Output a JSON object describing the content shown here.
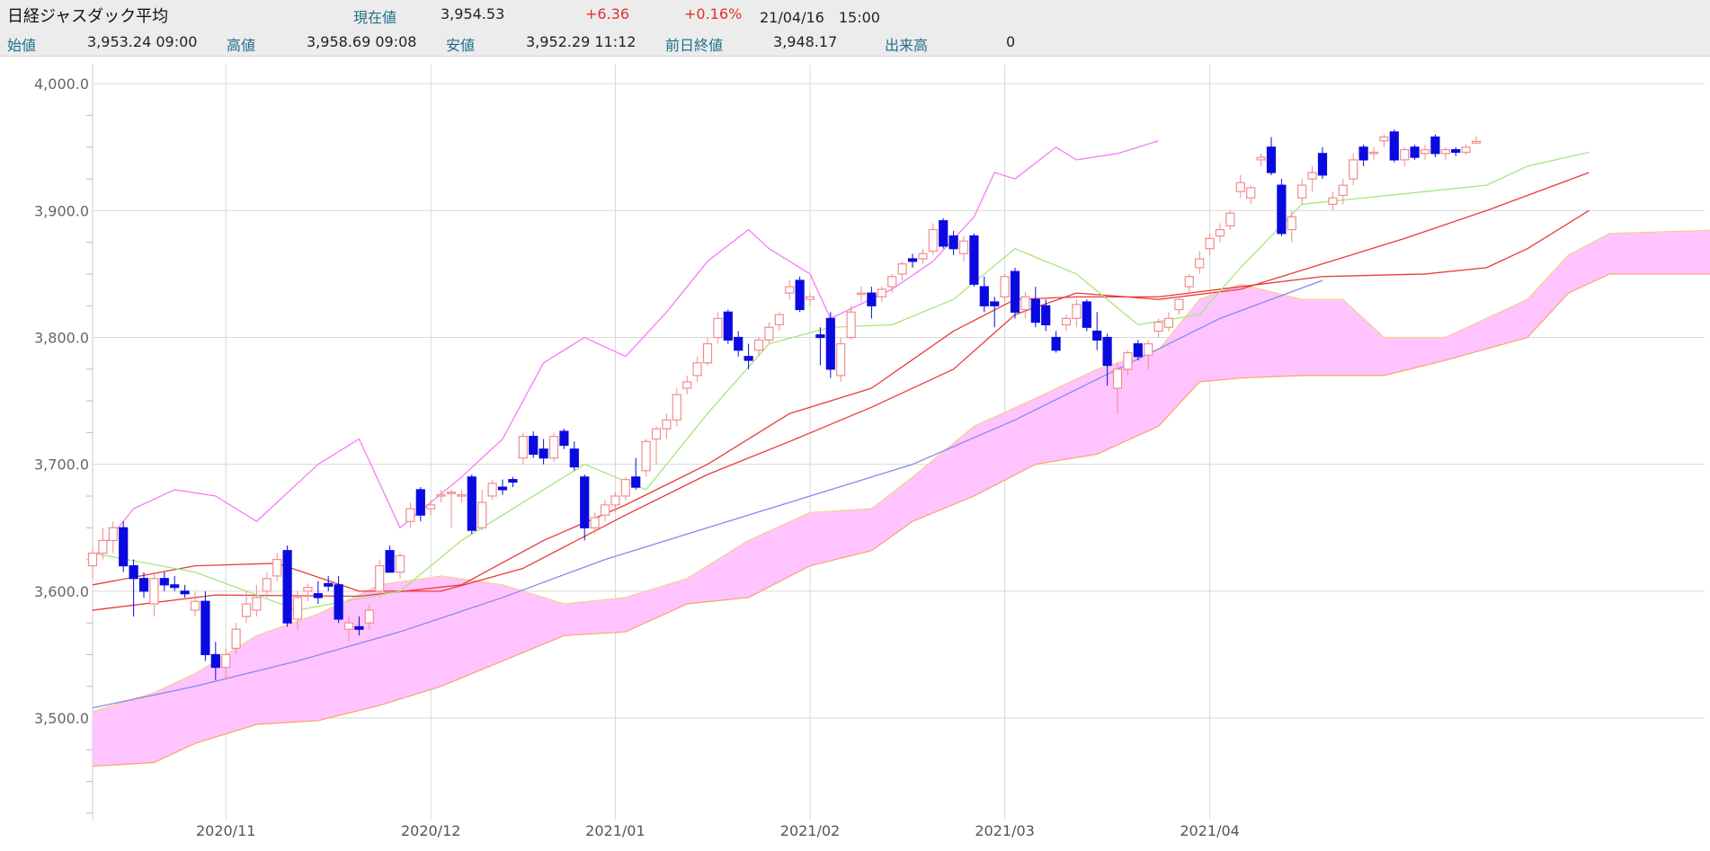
{
  "header": {
    "title": "日経ジャスダック平均",
    "current_label": "現在値",
    "current_value": "3,954.53",
    "change": "+6.36",
    "change_pct": "+0.16%",
    "datetime": "21/04/16　15:00",
    "open_label": "始値",
    "open_value": "3,953.24 09:00",
    "high_label": "高値",
    "high_value": "3,958.69 09:08",
    "low_label": "安値",
    "low_value": "3,952.29 11:12",
    "prev_close_label": "前日終値",
    "prev_close_value": "3,948.17",
    "volume_label": "出来高",
    "volume_value": "0"
  },
  "colors": {
    "cloud": "#ffc4ff",
    "cloud_edge_top": "#f4d08a",
    "cloud_edge_bottom": "#f7a46a",
    "candle_up": "#f28c8c",
    "candle_down": "#0a0ae0",
    "tenkan": "#a6e67a",
    "kijun_short": "#e83a3a",
    "kijun_long": "#e83a3a",
    "chikou": "#f37df3",
    "ma_long": "#8888ee",
    "grid": "#d9d9d9"
  },
  "chart_data": {
    "type": "candlestick",
    "ylim": [
      3420,
      4015
    ],
    "yticks": [
      3500,
      3600,
      3700,
      3800,
      3900,
      4000
    ],
    "ytick_labels": [
      "3,500.0",
      "3,600.0",
      "3,700.0",
      "3,800.0",
      "3,900.0",
      "4,000.0"
    ],
    "month_labels": [
      "2020/11",
      "2020/12",
      "2021/01",
      "2021/02",
      "2021/03",
      "2021/04"
    ],
    "month_index": [
      13,
      33,
      51,
      70,
      89,
      109
    ],
    "x_count": 151,
    "candles": [
      [
        3620,
        3635,
        3610,
        3630
      ],
      [
        3630,
        3650,
        3625,
        3640
      ],
      [
        3640,
        3655,
        3630,
        3650
      ],
      [
        3650,
        3655,
        3615,
        3620
      ],
      [
        3620,
        3625,
        3580,
        3610
      ],
      [
        3610,
        3615,
        3595,
        3600
      ],
      [
        3590,
        3615,
        3580,
        3610
      ],
      [
        3610,
        3615,
        3600,
        3605
      ],
      [
        3605,
        3612,
        3600,
        3603
      ],
      [
        3600,
        3605,
        3595,
        3598
      ],
      [
        3585,
        3600,
        3580,
        3592
      ],
      [
        3592,
        3600,
        3545,
        3550
      ],
      [
        3550,
        3560,
        3530,
        3540
      ],
      [
        3540,
        3555,
        3530,
        3550
      ],
      [
        3555,
        3575,
        3550,
        3570
      ],
      [
        3580,
        3600,
        3575,
        3590
      ],
      [
        3585,
        3605,
        3580,
        3595
      ],
      [
        3600,
        3615,
        3595,
        3610
      ],
      [
        3612,
        3630,
        3608,
        3625
      ],
      [
        3632,
        3636,
        3572,
        3575
      ],
      [
        3578,
        3600,
        3570,
        3595
      ],
      [
        3600,
        3606,
        3592,
        3603
      ],
      [
        3598,
        3608,
        3590,
        3595
      ],
      [
        3606,
        3612,
        3600,
        3604
      ],
      [
        3605,
        3612,
        3575,
        3578
      ],
      [
        3570,
        3580,
        3560,
        3575
      ],
      [
        3572,
        3580,
        3565,
        3570
      ],
      [
        3575,
        3590,
        3570,
        3585
      ],
      [
        3600,
        3625,
        3595,
        3620
      ],
      [
        3632,
        3636,
        3615,
        3615
      ],
      [
        3615,
        3630,
        3610,
        3628
      ],
      [
        3655,
        3670,
        3650,
        3665
      ],
      [
        3680,
        3682,
        3655,
        3660
      ],
      [
        3665,
        3672,
        3660,
        3668
      ],
      [
        3676,
        3680,
        3670,
        3676
      ],
      [
        3678,
        3680,
        3650,
        3678
      ],
      [
        3676,
        3680,
        3670,
        3676
      ],
      [
        3690,
        3692,
        3645,
        3648
      ],
      [
        3650,
        3680,
        3648,
        3670
      ],
      [
        3675,
        3688,
        3672,
        3685
      ],
      [
        3682,
        3688,
        3676,
        3680
      ],
      [
        3688,
        3690,
        3682,
        3686
      ],
      [
        3705,
        3725,
        3700,
        3722
      ],
      [
        3722,
        3726,
        3705,
        3708
      ],
      [
        3712,
        3720,
        3700,
        3705
      ],
      [
        3705,
        3725,
        3702,
        3722
      ],
      [
        3726,
        3728,
        3712,
        3715
      ],
      [
        3712,
        3718,
        3695,
        3698
      ],
      [
        3690,
        3692,
        3640,
        3650
      ],
      [
        3650,
        3662,
        3645,
        3658
      ],
      [
        3660,
        3672,
        3655,
        3668
      ],
      [
        3668,
        3678,
        3662,
        3675
      ],
      [
        3675,
        3690,
        3672,
        3688
      ],
      [
        3690,
        3705,
        3680,
        3682
      ],
      [
        3695,
        3720,
        3690,
        3718
      ],
      [
        3720,
        3730,
        3700,
        3728
      ],
      [
        3728,
        3740,
        3720,
        3735
      ],
      [
        3735,
        3760,
        3730,
        3755
      ],
      [
        3760,
        3770,
        3755,
        3765
      ],
      [
        3770,
        3785,
        3765,
        3780
      ],
      [
        3780,
        3800,
        3778,
        3795
      ],
      [
        3800,
        3820,
        3795,
        3815
      ],
      [
        3820,
        3822,
        3795,
        3798
      ],
      [
        3800,
        3805,
        3785,
        3790
      ],
      [
        3785,
        3795,
        3775,
        3782
      ],
      [
        3790,
        3800,
        3785,
        3798
      ],
      [
        3798,
        3812,
        3795,
        3808
      ],
      [
        3810,
        3820,
        3805,
        3818
      ],
      [
        3835,
        3845,
        3830,
        3840
      ],
      [
        3845,
        3848,
        3820,
        3822
      ],
      [
        3830,
        3835,
        3825,
        3832
      ],
      [
        3802,
        3808,
        3778,
        3800
      ],
      [
        3815,
        3820,
        3768,
        3775
      ],
      [
        3770,
        3800,
        3765,
        3795
      ],
      [
        3800,
        3825,
        3798,
        3820
      ],
      [
        3835,
        3840,
        3828,
        3835
      ],
      [
        3835,
        3840,
        3815,
        3825
      ],
      [
        3832,
        3840,
        3828,
        3838
      ],
      [
        3840,
        3850,
        3835,
        3848
      ],
      [
        3850,
        3860,
        3845,
        3858
      ],
      [
        3862,
        3866,
        3855,
        3860
      ],
      [
        3862,
        3870,
        3858,
        3866
      ],
      [
        3868,
        3890,
        3865,
        3885
      ],
      [
        3892,
        3894,
        3870,
        3872
      ],
      [
        3880,
        3884,
        3865,
        3870
      ],
      [
        3866,
        3880,
        3860,
        3876
      ],
      [
        3880,
        3882,
        3840,
        3842
      ],
      [
        3840,
        3848,
        3820,
        3825
      ],
      [
        3828,
        3832,
        3808,
        3825
      ],
      [
        3832,
        3850,
        3828,
        3848
      ],
      [
        3852,
        3855,
        3815,
        3820
      ],
      [
        3822,
        3836,
        3815,
        3832
      ],
      [
        3830,
        3840,
        3808,
        3812
      ],
      [
        3825,
        3830,
        3805,
        3810
      ],
      [
        3800,
        3805,
        3788,
        3790
      ],
      [
        3810,
        3818,
        3805,
        3815
      ],
      [
        3815,
        3830,
        3808,
        3826
      ],
      [
        3828,
        3830,
        3805,
        3808
      ],
      [
        3805,
        3820,
        3790,
        3798
      ],
      [
        3800,
        3803,
        3762,
        3778
      ],
      [
        3760,
        3780,
        3740,
        3775
      ],
      [
        3775,
        3790,
        3770,
        3788
      ],
      [
        3795,
        3798,
        3782,
        3785
      ],
      [
        3786,
        3798,
        3775,
        3795
      ],
      [
        3805,
        3815,
        3800,
        3812
      ],
      [
        3808,
        3820,
        3805,
        3815
      ],
      [
        3822,
        3832,
        3818,
        3830
      ],
      [
        3840,
        3850,
        3835,
        3848
      ],
      [
        3855,
        3868,
        3850,
        3862
      ],
      [
        3870,
        3882,
        3865,
        3878
      ],
      [
        3880,
        3890,
        3875,
        3885
      ],
      [
        3888,
        3900,
        3885,
        3898
      ],
      [
        3915,
        3928,
        3910,
        3922
      ],
      [
        3910,
        3920,
        3905,
        3918
      ],
      [
        3940,
        3945,
        3935,
        3942
      ],
      [
        3950,
        3958,
        3928,
        3930
      ],
      [
        3920,
        3925,
        3880,
        3882
      ],
      [
        3885,
        3900,
        3875,
        3895
      ],
      [
        3910,
        3925,
        3905,
        3920
      ],
      [
        3925,
        3935,
        3915,
        3930
      ],
      [
        3945,
        3950,
        3925,
        3928
      ],
      [
        3905,
        3915,
        3900,
        3910
      ],
      [
        3912,
        3925,
        3905,
        3920
      ],
      [
        3925,
        3945,
        3920,
        3940
      ],
      [
        3950,
        3952,
        3935,
        3940
      ],
      [
        3945,
        3950,
        3940,
        3946
      ],
      [
        3955,
        3960,
        3950,
        3958
      ],
      [
        3962,
        3964,
        3938,
        3940
      ],
      [
        3940,
        3950,
        3935,
        3948
      ],
      [
        3950,
        3952,
        3940,
        3942
      ],
      [
        3945,
        3952,
        3940,
        3948
      ],
      [
        3958,
        3960,
        3942,
        3945
      ],
      [
        3945,
        3950,
        3940,
        3948
      ],
      [
        3948,
        3950,
        3943,
        3946
      ],
      [
        3946,
        3952,
        3944,
        3950
      ],
      [
        3953.24,
        3958.69,
        3952.29,
        3954.53
      ]
    ],
    "tenkan": [
      [
        0,
        3630
      ],
      [
        10,
        3615
      ],
      [
        20,
        3585
      ],
      [
        30,
        3600
      ],
      [
        36,
        3640
      ],
      [
        42,
        3670
      ],
      [
        48,
        3700
      ],
      [
        54,
        3680
      ],
      [
        60,
        3740
      ],
      [
        66,
        3795
      ],
      [
        72,
        3808
      ],
      [
        78,
        3810
      ],
      [
        84,
        3830
      ],
      [
        90,
        3870
      ],
      [
        96,
        3850
      ],
      [
        102,
        3810
      ],
      [
        108,
        3818
      ],
      [
        112,
        3855
      ],
      [
        118,
        3905
      ],
      [
        124,
        3910
      ],
      [
        130,
        3915
      ],
      [
        136,
        3920
      ],
      [
        140,
        3935
      ],
      [
        146,
        3946
      ]
    ],
    "kijun_short": [
      [
        0,
        3605
      ],
      [
        10,
        3620
      ],
      [
        18,
        3622
      ],
      [
        26,
        3600
      ],
      [
        34,
        3600
      ],
      [
        42,
        3618
      ],
      [
        52,
        3660
      ],
      [
        60,
        3692
      ],
      [
        68,
        3718
      ],
      [
        76,
        3745
      ],
      [
        84,
        3775
      ],
      [
        90,
        3818
      ],
      [
        96,
        3835
      ],
      [
        104,
        3830
      ],
      [
        112,
        3838
      ],
      [
        120,
        3858
      ],
      [
        128,
        3878
      ],
      [
        136,
        3900
      ],
      [
        146,
        3930
      ]
    ],
    "kijun_long": [
      [
        0,
        3585
      ],
      [
        12,
        3597
      ],
      [
        26,
        3596
      ],
      [
        36,
        3605
      ],
      [
        44,
        3640
      ],
      [
        52,
        3668
      ],
      [
        60,
        3700
      ],
      [
        68,
        3740
      ],
      [
        76,
        3760
      ],
      [
        84,
        3805
      ],
      [
        90,
        3830
      ],
      [
        96,
        3832
      ],
      [
        104,
        3832
      ],
      [
        112,
        3840
      ],
      [
        120,
        3848
      ],
      [
        130,
        3850
      ],
      [
        136,
        3855
      ],
      [
        140,
        3870
      ],
      [
        146,
        3900
      ]
    ],
    "chikou": [
      [
        0,
        3625
      ],
      [
        4,
        3665
      ],
      [
        8,
        3680
      ],
      [
        12,
        3675
      ],
      [
        16,
        3655
      ],
      [
        22,
        3700
      ],
      [
        26,
        3720
      ],
      [
        30,
        3650
      ],
      [
        36,
        3690
      ],
      [
        40,
        3720
      ],
      [
        44,
        3780
      ],
      [
        48,
        3800
      ],
      [
        52,
        3785
      ],
      [
        56,
        3820
      ],
      [
        60,
        3860
      ],
      [
        64,
        3885
      ],
      [
        66,
        3870
      ],
      [
        70,
        3850
      ],
      [
        72,
        3815
      ],
      [
        78,
        3838
      ],
      [
        82,
        3860
      ],
      [
        86,
        3895
      ],
      [
        88,
        3930
      ],
      [
        90,
        3925
      ],
      [
        94,
        3950
      ],
      [
        96,
        3940
      ],
      [
        100,
        3945
      ],
      [
        104,
        3955
      ]
    ],
    "ma_long": [
      [
        0,
        3508
      ],
      [
        10,
        3525
      ],
      [
        20,
        3545
      ],
      [
        30,
        3568
      ],
      [
        40,
        3595
      ],
      [
        50,
        3625
      ],
      [
        60,
        3650
      ],
      [
        70,
        3675
      ],
      [
        80,
        3700
      ],
      [
        90,
        3735
      ],
      [
        100,
        3775
      ],
      [
        110,
        3815
      ],
      [
        120,
        3845
      ]
    ],
    "cloud_upper": [
      [
        0,
        3505
      ],
      [
        6,
        3520
      ],
      [
        10,
        3535
      ],
      [
        16,
        3565
      ],
      [
        22,
        3582
      ],
      [
        28,
        3605
      ],
      [
        34,
        3612
      ],
      [
        40,
        3605
      ],
      [
        46,
        3590
      ],
      [
        52,
        3595
      ],
      [
        58,
        3610
      ],
      [
        64,
        3640
      ],
      [
        70,
        3662
      ],
      [
        76,
        3665
      ],
      [
        80,
        3690
      ],
      [
        86,
        3730
      ],
      [
        92,
        3752
      ],
      [
        98,
        3775
      ],
      [
        104,
        3790
      ],
      [
        108,
        3830
      ],
      [
        112,
        3842
      ],
      [
        118,
        3830
      ],
      [
        122,
        3830
      ],
      [
        126,
        3800
      ],
      [
        132,
        3800
      ],
      [
        140,
        3830
      ],
      [
        144,
        3865
      ],
      [
        148,
        3882
      ],
      [
        160,
        3885
      ],
      [
        166,
        3900
      ],
      [
        172,
        3920
      ],
      [
        176,
        3922
      ]
    ],
    "cloud_lower": [
      [
        0,
        3462
      ],
      [
        6,
        3465
      ],
      [
        10,
        3480
      ],
      [
        16,
        3495
      ],
      [
        22,
        3498
      ],
      [
        28,
        3510
      ],
      [
        34,
        3525
      ],
      [
        40,
        3545
      ],
      [
        46,
        3565
      ],
      [
        52,
        3568
      ],
      [
        58,
        3590
      ],
      [
        64,
        3595
      ],
      [
        70,
        3620
      ],
      [
        76,
        3632
      ],
      [
        80,
        3655
      ],
      [
        86,
        3675
      ],
      [
        92,
        3700
      ],
      [
        98,
        3708
      ],
      [
        104,
        3730
      ],
      [
        108,
        3765
      ],
      [
        112,
        3768
      ],
      [
        118,
        3770
      ],
      [
        122,
        3770
      ],
      [
        126,
        3770
      ],
      [
        132,
        3782
      ],
      [
        140,
        3800
      ],
      [
        144,
        3835
      ],
      [
        148,
        3850
      ],
      [
        160,
        3850
      ],
      [
        166,
        3850
      ],
      [
        172,
        3850
      ],
      [
        176,
        3850
      ]
    ]
  }
}
